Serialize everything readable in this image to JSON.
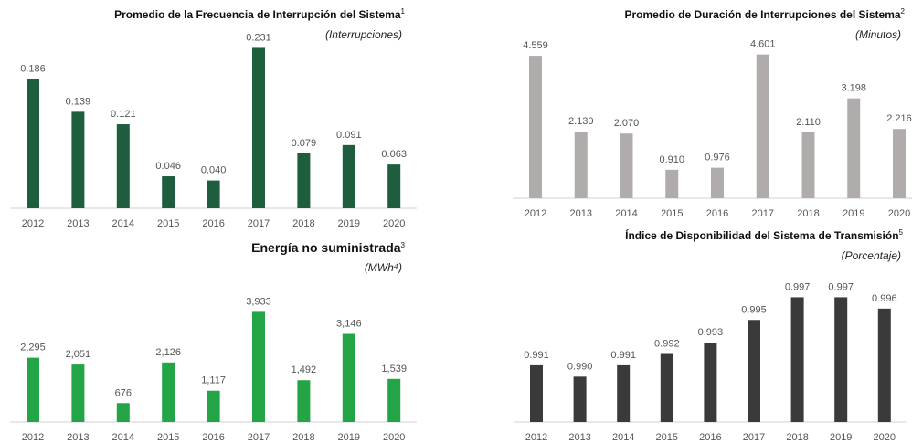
{
  "chart_data": [
    {
      "type": "bar",
      "title": "Promedio de la Frecuencia de Interrupción del Sistema",
      "title_note": "1",
      "subtitle": "(Interrupciones)",
      "categories": [
        "2012",
        "2013",
        "2014",
        "2015",
        "2016",
        "2017",
        "2018",
        "2019",
        "2020"
      ],
      "values": [
        0.186,
        0.139,
        0.121,
        0.046,
        0.04,
        0.231,
        0.079,
        0.091,
        0.063
      ],
      "value_labels": [
        "0.186",
        "0.139",
        "0.121",
        "0.046",
        "0.040",
        "0.231",
        "0.079",
        "0.091",
        "0.063"
      ],
      "color": "#1e5e3e",
      "ylim": [
        0,
        0.25
      ]
    },
    {
      "type": "bar",
      "title": "Promedio de Duración de Interrupciones del Sistema",
      "title_note": "2",
      "subtitle": "(Minutos)",
      "categories": [
        "2012",
        "2013",
        "2014",
        "2015",
        "2016",
        "2017",
        "2018",
        "2019",
        "2020"
      ],
      "values": [
        4.559,
        2.13,
        2.07,
        0.91,
        0.976,
        4.601,
        2.11,
        3.198,
        2.216
      ],
      "value_labels": [
        "4.559",
        "2.130",
        "2.070",
        "0.910",
        "0.976",
        "4.601",
        "2.110",
        "3.198",
        "2.216"
      ],
      "color": "#b1acac",
      "ylim": [
        0,
        5
      ]
    },
    {
      "type": "bar",
      "title": "Energía no suministrada",
      "title_note": "3",
      "subtitle": "(MWh⁴)",
      "categories": [
        "2012",
        "2013",
        "2014",
        "2015",
        "2016",
        "2017",
        "2018",
        "2019",
        "2020"
      ],
      "values": [
        2295,
        2051,
        676,
        2126,
        1117,
        3933,
        1492,
        3146,
        1539
      ],
      "value_labels": [
        "2,295",
        "2,051",
        "676",
        "2,126",
        "1,117",
        "3,933",
        "1,492",
        "3,146",
        "1,539"
      ],
      "color": "#22a447",
      "ylim": [
        0,
        4500
      ]
    },
    {
      "type": "bar",
      "title": "Índice de Disponibilidad del Sistema de Transmisión",
      "title_note": "5",
      "subtitle": "(Porcentaje)",
      "categories": [
        "2012",
        "2013",
        "2014",
        "2015",
        "2016",
        "2017",
        "2018",
        "2019",
        "2020"
      ],
      "values": [
        0.991,
        0.99,
        0.991,
        0.992,
        0.993,
        0.995,
        0.997,
        0.997,
        0.996
      ],
      "value_labels": [
        "0.991",
        "0.990",
        "0.991",
        "0.992",
        "0.993",
        "0.995",
        "0.997",
        "0.997",
        "0.996"
      ],
      "color": "#3a3a3a",
      "ylim": [
        0.986,
        0.998
      ]
    }
  ]
}
